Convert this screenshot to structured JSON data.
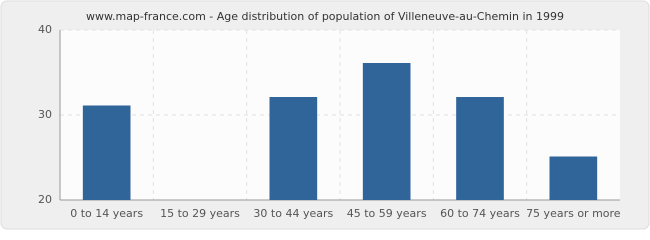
{
  "chart_data": {
    "type": "bar",
    "title": "www.map-france.com - Age distribution of population of Villeneuve-au-Chemin in 1999",
    "categories": [
      "0 to 14 years",
      "15 to 29 years",
      "30 to 44 years",
      "45 to 59 years",
      "60 to 74 years",
      "75 years or more"
    ],
    "values": [
      31,
      20,
      32,
      36,
      32,
      25
    ],
    "color": "#30659a",
    "ylim": [
      20,
      40
    ],
    "yticks": [
      20,
      30,
      40
    ],
    "grid": true
  }
}
